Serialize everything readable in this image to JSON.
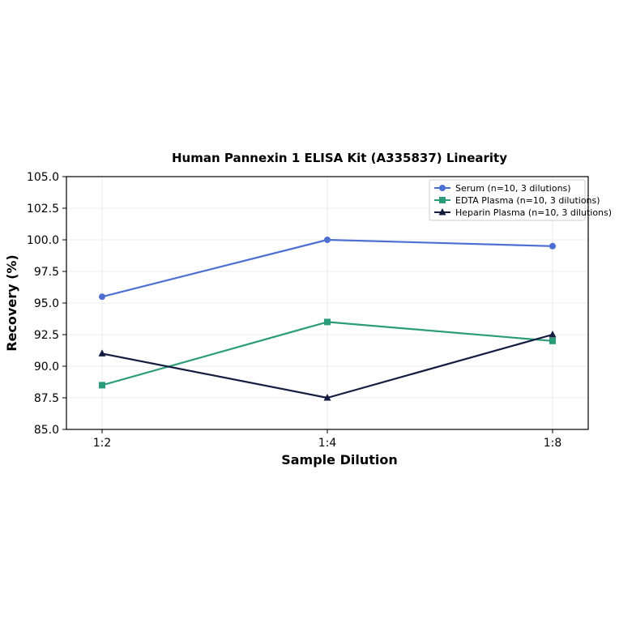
{
  "chart_data": {
    "type": "line",
    "title": "Human Pannexin 1 ELISA Kit (A335837) Linearity",
    "xlabel": "Sample Dilution",
    "ylabel": "Recovery (%)",
    "categories": [
      "1:2",
      "1:4",
      "1:8"
    ],
    "ylim": [
      85.0,
      105.0
    ],
    "yticks": [
      "85.0",
      "87.5",
      "90.0",
      "92.5",
      "95.0",
      "97.5",
      "100.0",
      "102.5",
      "105.0"
    ],
    "grid": true,
    "legend_position": "top-right",
    "series": [
      {
        "name": "Serum (n=10, 3 dilutions)",
        "values": [
          95.5,
          100.0,
          99.5
        ],
        "color": "#4d6fd4",
        "marker": "circle"
      },
      {
        "name": "EDTA Plasma (n=10, 3 dilutions)",
        "values": [
          88.5,
          93.5,
          92.0
        ],
        "color": "#2a9d78",
        "marker": "square"
      },
      {
        "name": "Heparin Plasma (n=10, 3 dilutions)",
        "values": [
          91.0,
          87.5,
          92.5
        ],
        "color": "#141c3f",
        "marker": "triangle"
      }
    ]
  }
}
